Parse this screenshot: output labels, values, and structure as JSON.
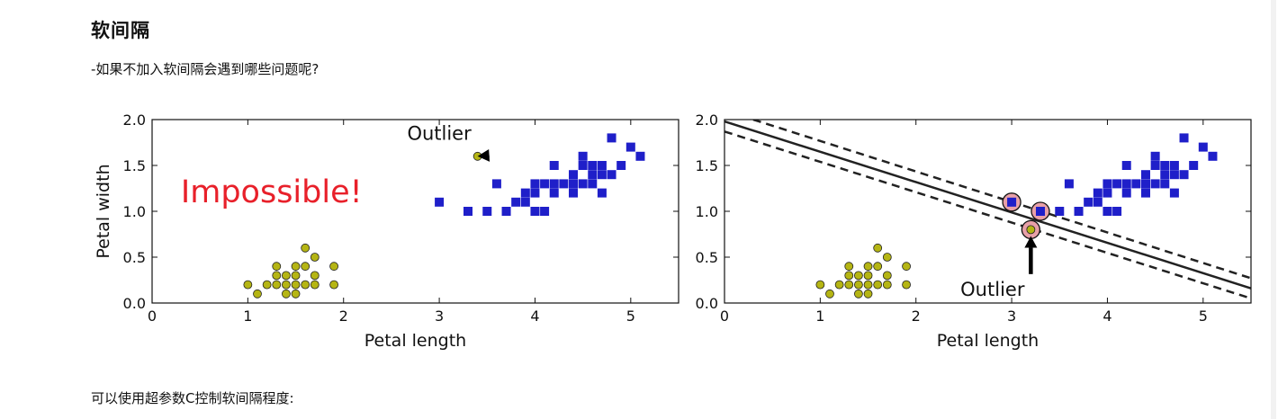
{
  "page": {
    "heading": "软间隔",
    "question": "-如果不加入软间隔会遇到哪些问题呢?",
    "footer": "可以使用超参数C控制软间隔程度:"
  },
  "colors": {
    "class0_fill": "#b5b514",
    "class1_fill": "#1f1fc9",
    "impossible_text": "#e8202a",
    "support_vector_fill": "#e8a0a8",
    "line": "#222222"
  },
  "chart_data": [
    {
      "type": "scatter",
      "title": "",
      "xlabel": "Petal length",
      "ylabel": "Petal width",
      "xlim": [
        0,
        5.5
      ],
      "ylim": [
        0,
        2.0
      ],
      "xticks": [
        "0",
        "1",
        "2",
        "3",
        "4",
        "5"
      ],
      "yticks": [
        "0.0",
        "0.5",
        "1.0",
        "1.5",
        "2.0"
      ],
      "series": [
        {
          "marker": "circle",
          "points": [
            [
              1.0,
              0.2
            ],
            [
              1.1,
              0.1
            ],
            [
              1.2,
              0.2
            ],
            [
              1.3,
              0.2
            ],
            [
              1.3,
              0.3
            ],
            [
              1.3,
              0.4
            ],
            [
              1.4,
              0.1
            ],
            [
              1.4,
              0.2
            ],
            [
              1.4,
              0.3
            ],
            [
              1.5,
              0.1
            ],
            [
              1.5,
              0.2
            ],
            [
              1.5,
              0.3
            ],
            [
              1.5,
              0.4
            ],
            [
              1.6,
              0.2
            ],
            [
              1.6,
              0.4
            ],
            [
              1.6,
              0.6
            ],
            [
              1.7,
              0.2
            ],
            [
              1.7,
              0.3
            ],
            [
              1.7,
              0.5
            ],
            [
              1.9,
              0.2
            ],
            [
              1.9,
              0.4
            ],
            [
              3.4,
              1.6
            ]
          ]
        },
        {
          "marker": "square",
          "points": [
            [
              3.0,
              1.1
            ],
            [
              3.3,
              1.0
            ],
            [
              3.5,
              1.0
            ],
            [
              3.6,
              1.3
            ],
            [
              3.7,
              1.0
            ],
            [
              3.8,
              1.1
            ],
            [
              3.9,
              1.1
            ],
            [
              3.9,
              1.2
            ],
            [
              4.0,
              1.0
            ],
            [
              4.0,
              1.2
            ],
            [
              4.0,
              1.3
            ],
            [
              4.1,
              1.0
            ],
            [
              4.1,
              1.3
            ],
            [
              4.2,
              1.2
            ],
            [
              4.2,
              1.3
            ],
            [
              4.2,
              1.5
            ],
            [
              4.3,
              1.3
            ],
            [
              4.4,
              1.2
            ],
            [
              4.4,
              1.3
            ],
            [
              4.4,
              1.4
            ],
            [
              4.5,
              1.3
            ],
            [
              4.5,
              1.5
            ],
            [
              4.5,
              1.6
            ],
            [
              4.6,
              1.3
            ],
            [
              4.6,
              1.4
            ],
            [
              4.6,
              1.5
            ],
            [
              4.7,
              1.2
            ],
            [
              4.7,
              1.4
            ],
            [
              4.7,
              1.5
            ],
            [
              4.8,
              1.4
            ],
            [
              4.8,
              1.8
            ],
            [
              4.9,
              1.5
            ],
            [
              5.0,
              1.7
            ],
            [
              5.1,
              1.6
            ]
          ]
        }
      ],
      "annotations": [
        {
          "text": "Outlier",
          "arrow_to": [
            3.4,
            1.6
          ],
          "text_at": [
            3.0,
            1.78
          ]
        },
        {
          "text": "Impossible!",
          "at": [
            0.3,
            1.1
          ],
          "color": "#e8202a"
        }
      ]
    },
    {
      "type": "scatter",
      "title": "",
      "xlabel": "Petal length",
      "ylabel": "",
      "xlim": [
        0,
        5.5
      ],
      "ylim": [
        0,
        2.0
      ],
      "xticks": [
        "0",
        "1",
        "2",
        "3",
        "4",
        "5"
      ],
      "yticks": [
        "0.0",
        "0.5",
        "1.0",
        "1.5",
        "2.0"
      ],
      "series": [
        {
          "marker": "circle",
          "points": [
            [
              1.0,
              0.2
            ],
            [
              1.1,
              0.1
            ],
            [
              1.2,
              0.2
            ],
            [
              1.3,
              0.2
            ],
            [
              1.3,
              0.3
            ],
            [
              1.3,
              0.4
            ],
            [
              1.4,
              0.1
            ],
            [
              1.4,
              0.2
            ],
            [
              1.4,
              0.3
            ],
            [
              1.5,
              0.1
            ],
            [
              1.5,
              0.2
            ],
            [
              1.5,
              0.3
            ],
            [
              1.5,
              0.4
            ],
            [
              1.6,
              0.2
            ],
            [
              1.6,
              0.4
            ],
            [
              1.6,
              0.6
            ],
            [
              1.7,
              0.2
            ],
            [
              1.7,
              0.3
            ],
            [
              1.7,
              0.5
            ],
            [
              1.9,
              0.2
            ],
            [
              1.9,
              0.4
            ],
            [
              3.2,
              0.8
            ]
          ]
        },
        {
          "marker": "square",
          "points": [
            [
              3.0,
              1.1
            ],
            [
              3.3,
              1.0
            ],
            [
              3.5,
              1.0
            ],
            [
              3.6,
              1.3
            ],
            [
              3.7,
              1.0
            ],
            [
              3.8,
              1.1
            ],
            [
              3.9,
              1.1
            ],
            [
              3.9,
              1.2
            ],
            [
              4.0,
              1.0
            ],
            [
              4.0,
              1.2
            ],
            [
              4.0,
              1.3
            ],
            [
              4.1,
              1.0
            ],
            [
              4.1,
              1.3
            ],
            [
              4.2,
              1.2
            ],
            [
              4.2,
              1.3
            ],
            [
              4.2,
              1.5
            ],
            [
              4.3,
              1.3
            ],
            [
              4.4,
              1.2
            ],
            [
              4.4,
              1.3
            ],
            [
              4.4,
              1.4
            ],
            [
              4.5,
              1.3
            ],
            [
              4.5,
              1.5
            ],
            [
              4.5,
              1.6
            ],
            [
              4.6,
              1.3
            ],
            [
              4.6,
              1.4
            ],
            [
              4.6,
              1.5
            ],
            [
              4.7,
              1.2
            ],
            [
              4.7,
              1.4
            ],
            [
              4.7,
              1.5
            ],
            [
              4.8,
              1.4
            ],
            [
              4.8,
              1.8
            ],
            [
              4.9,
              1.5
            ],
            [
              5.0,
              1.7
            ],
            [
              5.1,
              1.6
            ]
          ]
        }
      ],
      "lines": [
        {
          "style": "solid",
          "from": [
            0,
            1.98
          ],
          "to": [
            5.5,
            0.16
          ]
        },
        {
          "style": "dashed",
          "from": [
            0.3,
            2.0
          ],
          "to": [
            5.5,
            0.27
          ]
        },
        {
          "style": "dashed",
          "from": [
            0,
            1.87
          ],
          "to": [
            5.5,
            0.05
          ]
        }
      ],
      "support_vectors": [
        [
          3.0,
          1.1
        ],
        [
          3.3,
          1.0
        ],
        [
          3.2,
          0.8
        ]
      ],
      "annotations": [
        {
          "text": "Outlier",
          "arrow_to": [
            3.2,
            0.73
          ],
          "text_at": [
            2.8,
            0.08
          ]
        }
      ]
    }
  ]
}
